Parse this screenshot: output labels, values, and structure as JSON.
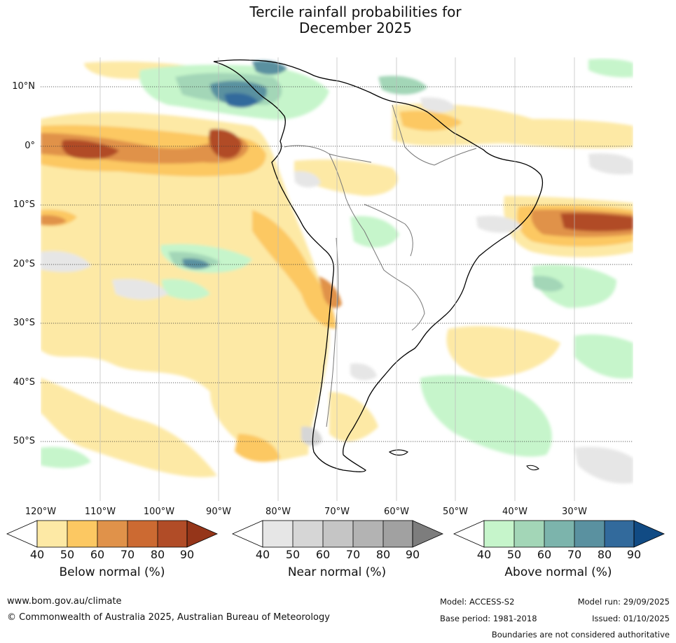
{
  "title": {
    "line1": "Tercile rainfall probabilities for",
    "line2": "December 2025"
  },
  "map": {
    "region": "South America",
    "latitude_labels": [
      "10°N",
      "0°",
      "10°S",
      "20°S",
      "30°S",
      "40°S",
      "50°S"
    ],
    "longitude_labels": [
      "120°W",
      "110°W",
      "100°W",
      "90°W",
      "80°W",
      "70°W",
      "60°W",
      "50°W",
      "40°W",
      "30°W"
    ]
  },
  "legends": {
    "below": {
      "caption": "Below normal (%)",
      "ticks": [
        "40",
        "50",
        "60",
        "70",
        "80",
        "90"
      ],
      "colors": [
        "#ffffff",
        "#fde9a5",
        "#fcc862",
        "#e0924a",
        "#cc6a32",
        "#b14c27",
        "#953519"
      ]
    },
    "near": {
      "caption": "Near normal (%)",
      "ticks": [
        "40",
        "50",
        "60",
        "70",
        "80",
        "90"
      ],
      "colors": [
        "#ffffff",
        "#e6e6e6",
        "#d6d6d6",
        "#c5c5c5",
        "#b3b3b3",
        "#a1a1a1",
        "#7d7d7d"
      ]
    },
    "above": {
      "caption": "Above normal (%)",
      "ticks": [
        "40",
        "50",
        "60",
        "70",
        "80",
        "90"
      ],
      "colors": [
        "#ffffff",
        "#c6f5cb",
        "#a3d6b7",
        "#7cb4ac",
        "#5a91a0",
        "#326a9c",
        "#114b84"
      ]
    }
  },
  "footer": {
    "website": "www.bom.gov.au/climate",
    "copyright": "© Commonwealth of Australia 2025, Australian Bureau of Meteorology",
    "model": "Model: ACCESS-S2",
    "base_period": "Base period: 1981-2018",
    "model_run": "Model run: 29/09/2025",
    "issued": "Issued: 01/10/2025",
    "disclaimer": "Boundaries are not considered authoritative"
  }
}
